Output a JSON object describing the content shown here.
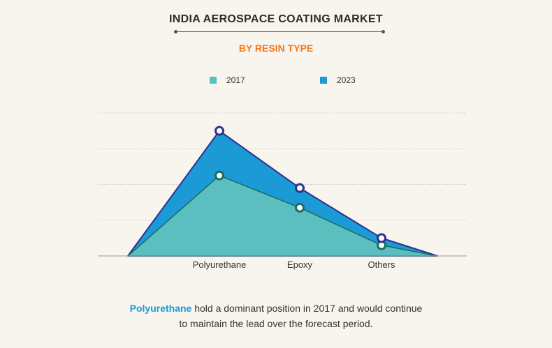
{
  "chart_data": {
    "type": "area",
    "title": "INDIA AEROSPACE COATING MARKET",
    "subtitle": "BY RESIN TYPE",
    "categories": [
      "",
      "Polyurethane",
      "Epoxy",
      "Others",
      ""
    ],
    "series": [
      {
        "name": "2017",
        "color": "#5bbfbf",
        "values": [
          0,
          45,
          27,
          6,
          0
        ]
      },
      {
        "name": "2023",
        "color": "#1b9ad6",
        "values": [
          0,
          70,
          38,
          10,
          0
        ]
      }
    ],
    "ylim": [
      0,
      80
    ],
    "grid": true,
    "legend": "top-center"
  },
  "footnote": {
    "highlight": "Polyurethane",
    "line1_rest": " hold a dominant position in 2017 and would continue",
    "line2": "to maintain the lead over the forecast period."
  },
  "colors": {
    "title": "#2c2c2c",
    "subtitle": "#f07a1f",
    "line_2023": "#2e3192",
    "line_2017": "#1e6b5e"
  }
}
